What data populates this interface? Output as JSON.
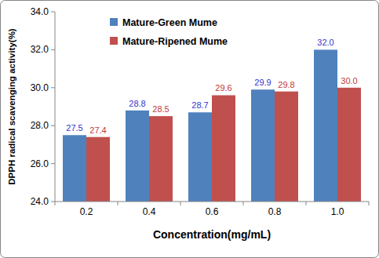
{
  "chart_data": {
    "type": "bar",
    "x_label": "Concentration(mg/mL)",
    "y_label": "DPPH radical scavenging activity(%)",
    "categories": [
      "0.2",
      "0.4",
      "0.6",
      "0.8",
      "1.0"
    ],
    "series": [
      {
        "name": "Mature-Green Mume",
        "color": "#4f81bd",
        "values": [
          27.5,
          28.8,
          28.7,
          29.9,
          32.0
        ],
        "value_labels": [
          "27.5",
          "28.8",
          "28.7",
          "29.9",
          "32.0"
        ]
      },
      {
        "name": "Mature-Ripened Mume",
        "color": "#c0504d",
        "values": [
          27.4,
          28.5,
          29.6,
          29.8,
          30.0
        ],
        "value_labels": [
          "27.4",
          "28.5",
          "29.6",
          "29.8",
          "30.0"
        ]
      }
    ],
    "ylim": [
      24,
      34
    ],
    "yticks": [
      {
        "value": 24,
        "label": "24.0"
      },
      {
        "value": 26,
        "label": "26.0"
      },
      {
        "value": 28,
        "label": "28.0"
      },
      {
        "value": 30,
        "label": "30.0"
      },
      {
        "value": 32,
        "label": "32.0"
      },
      {
        "value": 34,
        "label": "34.0"
      }
    ],
    "grid": false,
    "legend": "top-left",
    "data_labels": true
  }
}
